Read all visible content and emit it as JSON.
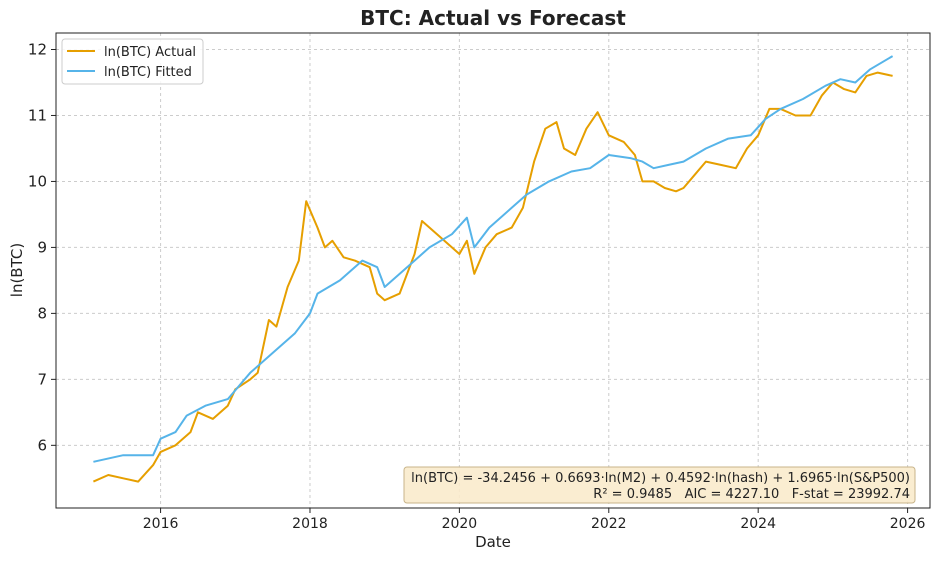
{
  "chart_data": {
    "type": "line",
    "title": "BTC: Actual vs Forecast",
    "xlabel": "Date",
    "ylabel": "ln(BTC)",
    "xlim": [
      2014.6,
      2026.3
    ],
    "ylim": [
      5.05,
      12.25
    ],
    "xticks": [
      2016,
      2018,
      2020,
      2022,
      2024,
      2026
    ],
    "yticks": [
      6,
      7,
      8,
      9,
      10,
      11,
      12
    ],
    "grid": true,
    "legend": {
      "placement": "top-left",
      "entries": [
        "ln(BTC) Actual",
        "ln(BTC) Fitted"
      ]
    },
    "series": [
      {
        "name": "ln(BTC) Actual",
        "color": "#E69F00",
        "x": [
          2015.1,
          2015.3,
          2015.5,
          2015.7,
          2015.9,
          2016.0,
          2016.2,
          2016.4,
          2016.5,
          2016.7,
          2016.9,
          2017.0,
          2017.2,
          2017.3,
          2017.45,
          2017.55,
          2017.7,
          2017.85,
          2017.95,
          2018.1,
          2018.2,
          2018.3,
          2018.45,
          2018.6,
          2018.8,
          2018.9,
          2019.0,
          2019.2,
          2019.4,
          2019.5,
          2019.6,
          2019.8,
          2020.0,
          2020.1,
          2020.2,
          2020.35,
          2020.5,
          2020.7,
          2020.85,
          2021.0,
          2021.15,
          2021.3,
          2021.4,
          2021.55,
          2021.7,
          2021.85,
          2022.0,
          2022.2,
          2022.35,
          2022.45,
          2022.6,
          2022.75,
          2022.9,
          2023.0,
          2023.15,
          2023.3,
          2023.5,
          2023.7,
          2023.85,
          2024.0,
          2024.15,
          2024.3,
          2024.5,
          2024.7,
          2024.85,
          2025.0,
          2025.15,
          2025.3,
          2025.45,
          2025.6,
          2025.8
        ],
        "y": [
          5.45,
          5.55,
          5.5,
          5.45,
          5.7,
          5.9,
          6.0,
          6.2,
          6.5,
          6.4,
          6.6,
          6.85,
          7.0,
          7.1,
          7.9,
          7.8,
          8.4,
          8.8,
          9.7,
          9.3,
          9.0,
          9.1,
          8.85,
          8.8,
          8.7,
          8.3,
          8.2,
          8.3,
          8.9,
          9.4,
          9.3,
          9.1,
          8.9,
          9.1,
          8.6,
          9.0,
          9.2,
          9.3,
          9.6,
          10.3,
          10.8,
          10.9,
          10.5,
          10.4,
          10.8,
          11.05,
          10.7,
          10.6,
          10.4,
          10.0,
          10.0,
          9.9,
          9.85,
          9.9,
          10.1,
          10.3,
          10.25,
          10.2,
          10.5,
          10.7,
          11.1,
          11.1,
          11.0,
          11.0,
          11.3,
          11.5,
          11.4,
          11.35,
          11.6,
          11.65,
          11.6
        ]
      },
      {
        "name": "ln(BTC) Fitted",
        "color": "#56B4E9",
        "x": [
          2015.1,
          2015.5,
          2015.9,
          2016.0,
          2016.2,
          2016.35,
          2016.6,
          2016.9,
          2017.2,
          2017.5,
          2017.8,
          2018.0,
          2018.1,
          2018.4,
          2018.7,
          2018.9,
          2019.0,
          2019.3,
          2019.6,
          2019.9,
          2020.1,
          2020.2,
          2020.4,
          2020.7,
          2020.9,
          2021.2,
          2021.5,
          2021.75,
          2022.0,
          2022.3,
          2022.45,
          2022.6,
          2022.8,
          2023.0,
          2023.3,
          2023.6,
          2023.9,
          2024.1,
          2024.3,
          2024.6,
          2024.9,
          2025.1,
          2025.3,
          2025.5,
          2025.8
        ],
        "y": [
          5.75,
          5.85,
          5.85,
          6.1,
          6.2,
          6.45,
          6.6,
          6.7,
          7.1,
          7.4,
          7.7,
          8.0,
          8.3,
          8.5,
          8.8,
          8.7,
          8.4,
          8.7,
          9.0,
          9.2,
          9.45,
          9.0,
          9.3,
          9.6,
          9.8,
          10.0,
          10.15,
          10.2,
          10.4,
          10.35,
          10.3,
          10.2,
          10.25,
          10.3,
          10.5,
          10.65,
          10.7,
          10.95,
          11.1,
          11.25,
          11.45,
          11.55,
          11.5,
          11.7,
          11.9
        ]
      }
    ],
    "annotation": {
      "line1": "ln(BTC) = -34.2456 + 0.6693·ln(M2) + 0.4592·ln(hash) + 1.6965·ln(S&P500)",
      "line2": "R² = 0.9485   AIC = 4227.10   F-stat = 23992.74"
    }
  }
}
